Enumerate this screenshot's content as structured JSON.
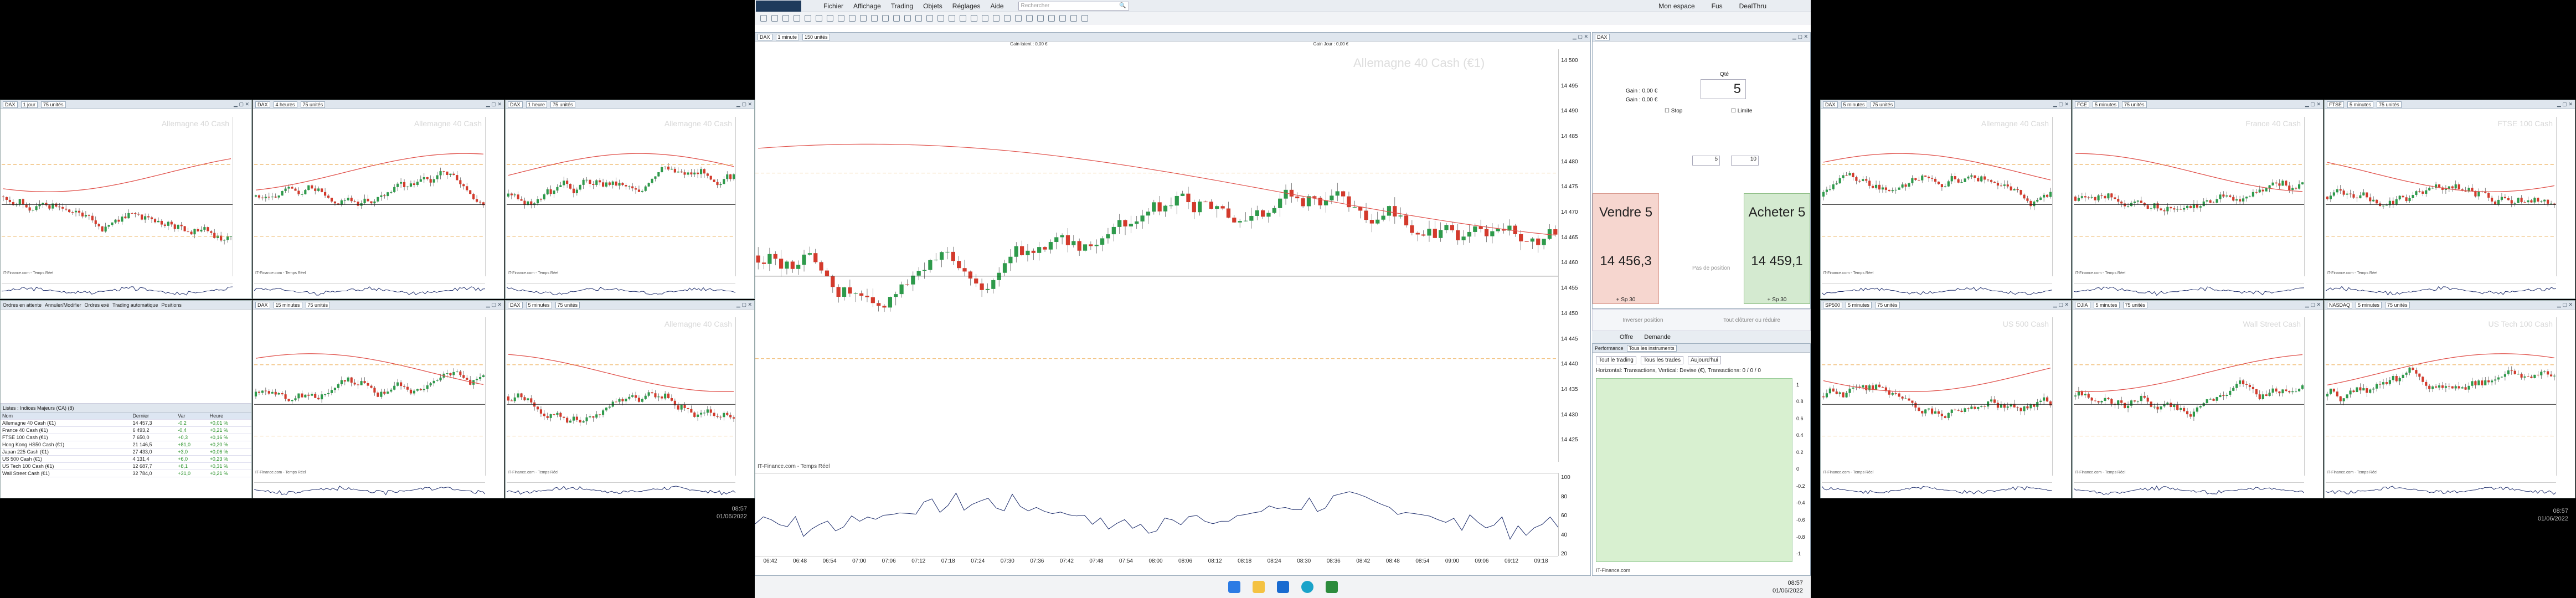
{
  "colors": {
    "up": "#2e9a4b",
    "down": "#d33a2c",
    "ma": "#e0504a",
    "desk": "#000000",
    "accent": "#1a5aa8"
  },
  "center": {
    "menu": [
      "Fichier",
      "Affichage",
      "Trading",
      "Objets",
      "Réglages",
      "Aide"
    ],
    "search_placeholder": "Rechercher",
    "top_right": [
      "Mon espace",
      "Fus",
      "DealThru"
    ],
    "chart_toolbar": {
      "instrument": "DAX",
      "period": "1 minute",
      "units": "150 unités"
    },
    "gain_latent": "Gain latent : 0,00 €",
    "gain_jour": "Gain Jour : 0,00 €",
    "watermark": "Allemagne 40 Cash (€1)",
    "credit": "IT-Finance.com - Temps Réel",
    "clu_label": "Clo Lt. Préc.",
    "price_badge": "14 457,3",
    "y_ticks": [
      "14 500",
      "14 495",
      "14 490",
      "14 485",
      "14 480",
      "14 475",
      "14 470",
      "14 465",
      "14 460",
      "14 455",
      "14 450",
      "14 445",
      "14 440",
      "14 435",
      "14 430",
      "14 425"
    ],
    "x_ticks": [
      "06:42",
      "06:48",
      "06:54",
      "07:00",
      "07:06",
      "07:12",
      "07:18",
      "07:24",
      "07:30",
      "07:36",
      "07:42",
      "07:48",
      "07:54",
      "08:00",
      "08:06",
      "08:12",
      "08:18",
      "08:24",
      "08:30",
      "08:36",
      "08:42",
      "08:48",
      "08:54",
      "09:00",
      "09:06",
      "09:12",
      "09:18"
    ],
    "osc_ticks": [
      "100",
      "80",
      "60",
      "40",
      "20"
    ],
    "taskbar_time": "08:57",
    "taskbar_date": "01/06/2022"
  },
  "order": {
    "instrument": "DAX",
    "qty_label": "Qté",
    "qty": "5",
    "gain1": "Gain : 0,00 €",
    "gain2": "Gain : 0,00 €",
    "fields": [
      "Stop",
      "Limite",
      "pts",
      "pts"
    ],
    "stop_pts": "5",
    "limit_pts": "10",
    "sell_label": "Vendre 5",
    "sell_price": "14 456,3",
    "buy_label": "Acheter 5",
    "buy_price": "14 459,1",
    "sp_left": "+ Sp 30",
    "sp_right": "+ Sp 30",
    "no_position": "Pas de position",
    "tabs": [
      "Offre",
      "Demande"
    ],
    "actions": [
      "Inverser position",
      "Tout clôturer ou réduire"
    ],
    "perf_label": "Performance",
    "all_instruments": "Tous les instruments",
    "filters": [
      "Tout le trading",
      "Tous les trades",
      "Aujourd'hui"
    ],
    "chart_caption": "Horizontal: Transactions, Vertical: Devise (€), Transactions: 0 / 0 / 0",
    "perf_y": [
      "1",
      "0.8",
      "0.6",
      "0.4",
      "0.2",
      "0",
      "-0.2",
      "-0.4",
      "-0.6",
      "-0.8",
      "-1"
    ],
    "credit": "IT-Finance.com"
  },
  "left": {
    "charts": [
      {
        "inst": "DAX",
        "period": "1 jour",
        "units": "75 unités",
        "wm": "Allemagne 40 Cash"
      },
      {
        "inst": "DAX",
        "period": "4 heures",
        "units": "75 unités",
        "wm": "Allemagne 40 Cash"
      },
      {
        "inst": "DAX",
        "period": "1 heure",
        "units": "75 unités",
        "wm": "Allemagne 40 Cash"
      },
      {
        "inst": "DAX",
        "period": "15 minutes",
        "units": "75 unités",
        "wm": ""
      },
      {
        "inst": "DAX",
        "period": "5 minutes",
        "units": "75 unités",
        "wm": "Allemagne 40 Cash"
      }
    ],
    "order_tabs": [
      "Ordres en attente",
      "Annuler/Modifier",
      "Ordres exé",
      "Trading automatique",
      "Positions"
    ],
    "list_title": "Listes : Indices Majeurs (CA) (8)",
    "list_cols": [
      "Nom",
      "Dernier",
      "Var",
      "Heure"
    ],
    "list_rows": [
      {
        "name": "Allemagne 40 Cash (€1)",
        "last": "14 457,3",
        "var": "-0,2",
        "time": "+0,01 %"
      },
      {
        "name": "France 40 Cash (€1)",
        "last": "6 493,2",
        "var": "-0,4",
        "time": "+0,21 %"
      },
      {
        "name": "FTSE 100 Cash (€1)",
        "last": "7 650,0",
        "var": "+0,3",
        "time": "+0,16 %"
      },
      {
        "name": "Hong Kong HS50 Cash (€1)",
        "last": "21 146,5",
        "var": "+81,0",
        "time": "+0,20 %"
      },
      {
        "name": "Japan 225 Cash (€1)",
        "last": "27 433,0",
        "var": "+3,0",
        "time": "+0,06 %"
      },
      {
        "name": "US 500 Cash (€1)",
        "last": "4 131,4",
        "var": "+6,0",
        "time": "+0,23 %"
      },
      {
        "name": "US Tech 100 Cash (€1)",
        "last": "12 687,7",
        "var": "+8,1",
        "time": "+0,31 %"
      },
      {
        "name": "Wall Street Cash (€1)",
        "last": "32 784,0",
        "var": "+31,0",
        "time": "+0,21 %"
      }
    ],
    "credit": "IT-Finance.com - Temps Réel",
    "time": "08:57",
    "date": "01/06/2022"
  },
  "right": {
    "charts": [
      {
        "inst": "DAX",
        "period": "5 minutes",
        "units": "75 unités",
        "wm": "Allemagne 40 Cash"
      },
      {
        "inst": "FCE",
        "period": "5 minutes",
        "units": "75 unités",
        "wm": "France 40 Cash"
      },
      {
        "inst": "FTSE",
        "period": "5 minutes",
        "units": "75 unités",
        "wm": "FTSE 100 Cash"
      },
      {
        "inst": "SP500",
        "period": "5 minutes",
        "units": "75 unités",
        "wm": "US 500 Cash"
      },
      {
        "inst": "DJIA",
        "period": "5 minutes",
        "units": "75 unités",
        "wm": "Wall Street Cash"
      },
      {
        "inst": "NASDAQ",
        "period": "5 minutes",
        "units": "75 unités",
        "wm": "US Tech 100 Cash"
      }
    ],
    "credit": "IT-Finance.com - Temps Réel",
    "time": "08:57",
    "date": "01/06/2022"
  }
}
